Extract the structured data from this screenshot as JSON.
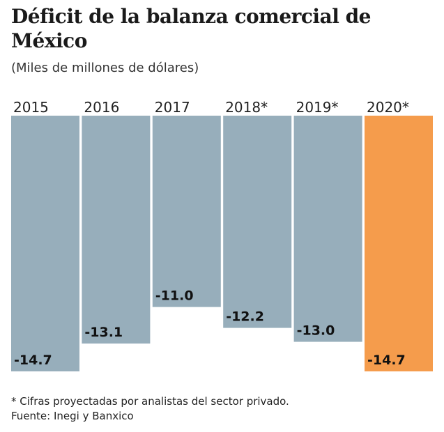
{
  "chart_data": {
    "type": "bar",
    "title": "Déficit de la balanza comercial de México",
    "subtitle": "(Miles de millones de dólares)",
    "categories": [
      "2015",
      "2016",
      "2017",
      "2018*",
      "2019*",
      "2020*"
    ],
    "values": [
      -14.7,
      -13.1,
      -11.0,
      -12.2,
      -13.0,
      -14.7
    ],
    "value_labels": [
      "-14.7",
      "-13.1",
      "-11.0",
      "-12.2",
      "-13.0",
      "-14.7"
    ],
    "colors": [
      "#97aebb",
      "#97aebb",
      "#97aebb",
      "#97aebb",
      "#97aebb",
      "#f59c4c"
    ],
    "xlabel": "",
    "ylabel": "",
    "ylim": [
      -14.7,
      0
    ],
    "footnote": "* Cifras proyectadas por analistas del sector privado.",
    "source": "Fuente: Inegi y Banxico"
  }
}
